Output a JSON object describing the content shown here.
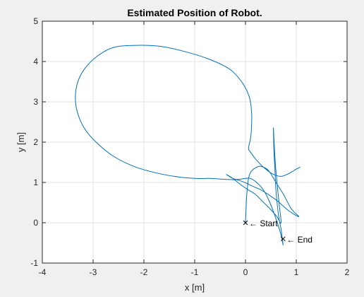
{
  "figure": {
    "background": "#f0f0f0"
  },
  "chart_data": {
    "type": "line",
    "title": "Estimated Position of Robot.",
    "xlabel": "x [m]",
    "ylabel": "y [m]",
    "xlim": [
      -4,
      2
    ],
    "ylim": [
      -1,
      5
    ],
    "xticks": [
      -4,
      -3,
      -2,
      -1,
      0,
      1,
      2
    ],
    "yticks": [
      -1,
      0,
      1,
      2,
      3,
      4,
      5
    ],
    "xtick_labels": [
      "-4",
      "-3",
      "-2",
      "-1",
      "0",
      "1",
      "2"
    ],
    "ytick_labels": [
      "-1",
      "0",
      "1",
      "2",
      "3",
      "4",
      "5"
    ],
    "grid": true,
    "legend": "none",
    "series_color": "#0072bd",
    "series": [
      {
        "x": [
          0,
          0.01,
          0.02,
          0.04,
          0.06,
          0.1,
          0.18,
          0.3,
          0.45,
          0.6,
          0.75,
          0.9,
          1.05,
          0.85,
          0.62,
          0.45,
          0.3,
          0.15,
          0.02,
          -0.12,
          -0.25,
          -0.38,
          -0.25,
          -0.1,
          0.05,
          0.18,
          0.32,
          0.48,
          0.62,
          0.7,
          0.66,
          0.62,
          0.58,
          0.55,
          0.56,
          0.58,
          0.6,
          0.63,
          0.66,
          0.7,
          0.72,
          0.74,
          0.7,
          0.6,
          0.48,
          0.36,
          0.22,
          0.1,
          0.0,
          -0.1,
          -0.25,
          -0.45,
          -0.7,
          -1.0,
          -1.4,
          -1.8,
          -2.2,
          -2.6,
          -2.9,
          -3.15,
          -3.3,
          -3.35,
          -3.3,
          -3.15,
          -2.9,
          -2.6,
          -2.2,
          -1.7,
          -1.2,
          -0.7,
          -0.3,
          -0.05,
          0.08,
          0.12,
          0.12,
          0.1,
          0.06,
          0.1,
          0.22,
          0.38,
          0.55,
          0.7,
          0.82,
          0.92,
          1.0,
          1.08
        ],
        "y": [
          0,
          0.3,
          0.6,
          0.9,
          1.1,
          1.25,
          1.35,
          1.4,
          1.3,
          1.0,
          0.7,
          0.35,
          0.15,
          0.3,
          0.55,
          0.7,
          0.82,
          0.9,
          0.98,
          1.05,
          1.1,
          1.2,
          1.1,
          0.95,
          0.82,
          0.72,
          0.55,
          0.35,
          0.15,
          0.0,
          0.5,
          1.0,
          1.6,
          2.35,
          1.8,
          1.3,
          0.8,
          0.4,
          0.1,
          -0.15,
          -0.35,
          -0.55,
          -0.3,
          0.1,
          0.5,
          0.8,
          1.0,
          1.1,
          1.1,
          1.08,
          1.07,
          1.08,
          1.1,
          1.1,
          1.15,
          1.25,
          1.4,
          1.65,
          1.95,
          2.3,
          2.7,
          3.1,
          3.5,
          3.85,
          4.15,
          4.35,
          4.4,
          4.38,
          4.25,
          4.05,
          3.8,
          3.45,
          3.1,
          2.75,
          2.4,
          2.1,
          1.85,
          1.75,
          1.55,
          1.35,
          1.2,
          1.15,
          1.2,
          1.27,
          1.33,
          1.38
        ]
      }
    ],
    "annotations": [
      {
        "text": "← Start",
        "x": 0,
        "y": 0
      },
      {
        "text": "← End",
        "x": 0.74,
        "y": -0.4
      }
    ]
  }
}
